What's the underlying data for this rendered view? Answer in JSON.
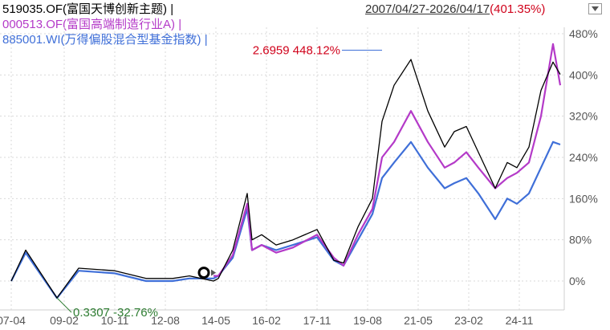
{
  "legend": {
    "series1": "519035.OF(富国天博创新主题) |",
    "series2": "000513.OF(富国高端制造行业A) |",
    "series3": "885001.WI(万得偏股混合型基金指数) |"
  },
  "range": {
    "dates": "2007/04/27-2026/04/17",
    "pct": "(401.35%)"
  },
  "colors": {
    "series1": "#000000",
    "series2": "#b43ac8",
    "series3": "#3f6fd8",
    "max_label": "#d0021b",
    "min_label": "#2e7d32"
  },
  "icons": {
    "dropdown": "triangle-down-icon",
    "start_marker": "circle-marker-icon"
  },
  "chart_data": {
    "type": "line",
    "title": "",
    "x_ticks": [
      "07-04",
      "09-02",
      "10-11",
      "12-08",
      "14-05",
      "16-02",
      "17-11",
      "19-08",
      "21-05",
      "23-02",
      "24-11"
    ],
    "y_ticks": [
      "480%",
      "400%",
      "320%",
      "240%",
      "160%",
      "80%",
      "0%"
    ],
    "ylim": [
      -55,
      490
    ],
    "grid": true,
    "legend_position": "top-left",
    "series": [
      {
        "name": "519035.OF(富国天博创新主题)",
        "color": "#000000",
        "x": [
          "2007-04",
          "2007-10",
          "2008-11",
          "2009-08",
          "2010-11",
          "2011-12",
          "2012-11",
          "2013-06",
          "2014-04",
          "2014-06",
          "2014-12",
          "2015-06",
          "2015-08",
          "2015-12",
          "2016-06",
          "2017-01",
          "2017-11",
          "2018-06",
          "2018-10",
          "2019-04",
          "2019-10",
          "2020-02",
          "2020-07",
          "2021-02",
          "2021-09",
          "2022-04",
          "2022-08",
          "2023-01",
          "2023-06",
          "2024-01",
          "2024-06",
          "2024-10",
          "2025-03",
          "2025-08",
          "2026-01",
          "2026-04"
        ],
        "values": [
          0,
          60,
          -32.8,
          25,
          20,
          5,
          5,
          10,
          0,
          5,
          60,
          170,
          80,
          90,
          70,
          80,
          100,
          40,
          35,
          105,
          160,
          310,
          380,
          430,
          330,
          260,
          290,
          300,
          250,
          180,
          230,
          220,
          260,
          370,
          425,
          401
        ]
      },
      {
        "name": "000513.OF(富国高端制造行业A)",
        "color": "#b43ac8",
        "x": [
          "2014-04",
          "2014-06",
          "2014-12",
          "2015-06",
          "2015-08",
          "2015-12",
          "2016-06",
          "2017-01",
          "2017-11",
          "2018-06",
          "2018-10",
          "2019-04",
          "2019-10",
          "2020-02",
          "2020-07",
          "2021-02",
          "2021-09",
          "2022-04",
          "2022-08",
          "2023-01",
          "2023-06",
          "2024-01",
          "2024-06",
          "2024-10",
          "2025-03",
          "2025-08",
          "2026-01",
          "2026-04"
        ],
        "values": [
          10,
          10,
          50,
          150,
          60,
          70,
          55,
          65,
          90,
          45,
          30,
          90,
          140,
          240,
          270,
          330,
          270,
          220,
          230,
          250,
          220,
          180,
          200,
          210,
          230,
          320,
          460,
          380
        ]
      },
      {
        "name": "885001.WI(万得偏股混合型基金指数)",
        "color": "#3f6fd8",
        "x": [
          "2007-04",
          "2007-10",
          "2008-11",
          "2009-08",
          "2010-11",
          "2011-12",
          "2012-11",
          "2013-06",
          "2014-04",
          "2014-06",
          "2014-12",
          "2015-06",
          "2015-08",
          "2015-12",
          "2016-06",
          "2017-01",
          "2017-11",
          "2018-06",
          "2018-10",
          "2019-04",
          "2019-10",
          "2020-02",
          "2020-07",
          "2021-02",
          "2021-09",
          "2022-04",
          "2022-08",
          "2023-01",
          "2023-06",
          "2024-01",
          "2024-06",
          "2024-10",
          "2025-03",
          "2025-08",
          "2026-01",
          "2026-04"
        ],
        "values": [
          0,
          55,
          -33,
          20,
          15,
          0,
          0,
          5,
          5,
          10,
          45,
          140,
          60,
          70,
          60,
          70,
          85,
          40,
          30,
          80,
          130,
          200,
          230,
          270,
          220,
          180,
          190,
          200,
          170,
          120,
          160,
          150,
          170,
          220,
          270,
          265
        ]
      }
    ],
    "annotations": [
      {
        "label": "2.6959 448.12%",
        "x": "2020-02",
        "y": 448.12,
        "kind": "max"
      },
      {
        "label": "0.3307 -32.76%",
        "x": "2008-11",
        "y": -32.76,
        "kind": "min"
      }
    ]
  }
}
